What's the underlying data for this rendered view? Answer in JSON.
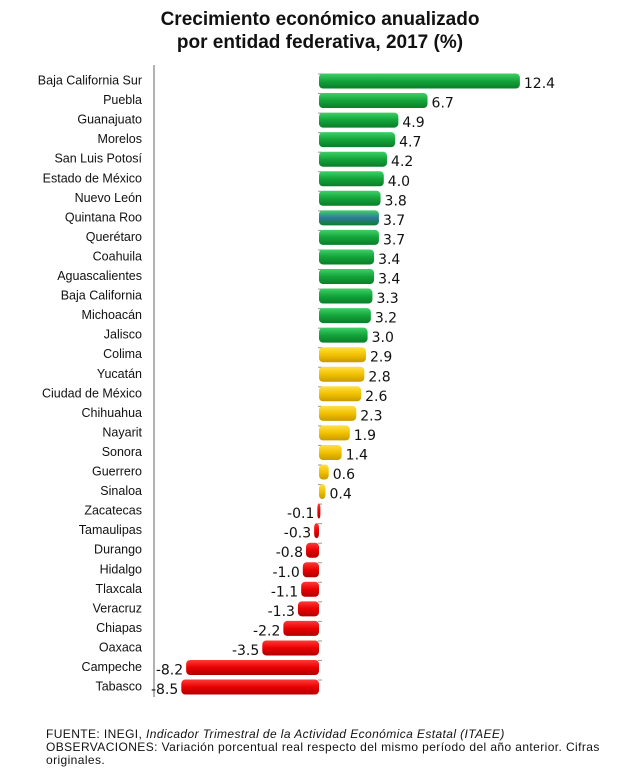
{
  "title_line1": "Crecimiento económico anualizado",
  "title_line2": "por entidad federativa, 2017 (%)",
  "chart_data": {
    "type": "bar",
    "orientation": "horizontal",
    "title": "Crecimiento económico anualizado por entidad federativa, 2017 (%)",
    "xlabel": "",
    "ylabel": "",
    "categories": [
      "Baja California Sur",
      "Puebla",
      "Guanajuato",
      "Morelos",
      "San Luis Potosí",
      "Estado de México",
      "Nuevo León",
      "Quintana Roo",
      "Querétaro",
      "Coahuila",
      "Aguascalientes",
      "Baja California",
      "Michoacán",
      "Jalisco",
      "Colima",
      "Yucatán",
      "Ciudad de México",
      "Chihuahua",
      "Nayarit",
      "Sonora",
      "Guerrero",
      "Sinaloa",
      "Zacatecas",
      "Tamaulipas",
      "Durango",
      "Hidalgo",
      "Tlaxcala",
      "Veracruz",
      "Chiapas",
      "Oaxaca",
      "Campeche",
      "Tabasco"
    ],
    "values": [
      12.4,
      6.7,
      4.9,
      4.7,
      4.2,
      4.0,
      3.8,
      3.7,
      3.7,
      3.4,
      3.4,
      3.3,
      3.2,
      3.0,
      2.9,
      2.8,
      2.6,
      2.3,
      1.9,
      1.4,
      0.6,
      0.4,
      -0.1,
      -0.3,
      -0.8,
      -1.0,
      -1.1,
      -1.3,
      -2.2,
      -3.5,
      -8.2,
      -8.5
    ],
    "labels": [
      "12.4",
      "6.7",
      "4.9",
      "4.7",
      "4.2",
      "4.0",
      "3.8",
      "3.7",
      "3.7",
      "3.4",
      "3.4",
      "3.3",
      "3.2",
      "3.0",
      "2.9",
      "2.8",
      "2.6",
      "2.3",
      "1.9",
      "1.4",
      "0.6",
      "0.4",
      "-0.1",
      "-0.3",
      "-0.8",
      "-1.0",
      "-1.1",
      "-1.3",
      "-2.2",
      "-3.5",
      "-8.2",
      "-8.5"
    ],
    "xlim": [
      -8.5,
      12.4
    ],
    "colors": {
      "high": "#16a83c",
      "mid": "#f2c200",
      "low": "#e80000",
      "highlight": "#2f7a9a"
    },
    "grid": false,
    "legend": "none"
  },
  "footer": {
    "source_label": "FUENTE: INEGI,",
    "source_title": "Indicador Trimestral de la Actividad Económica Estatal (ITAEE)",
    "observations": "OBSERVACIONES: Variación porcentual real respecto del mismo período del año anterior. Cifras originales."
  }
}
